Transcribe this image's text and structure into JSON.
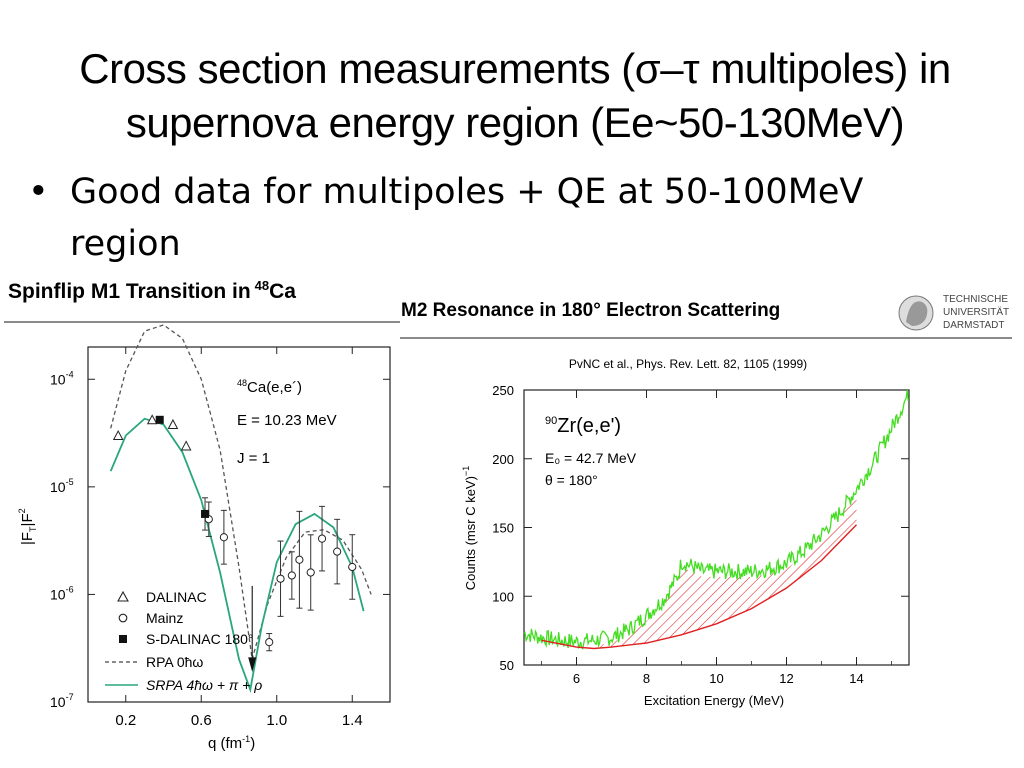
{
  "slide": {
    "title_line1": "Cross section measurements (σ–τ multipoles) in",
    "title_line2": "supernova energy region (Ee~50-130MeV)",
    "bullet_symbol": "•",
    "bullet_text_line1": "Good data for multipoles + QE at 50-100MeV",
    "bullet_text_line2": "region"
  },
  "chart_data": [
    {
      "type": "scatter",
      "title": "Spinflip M1 Transition in",
      "title_superscript": "48",
      "title_element": "Ca",
      "xlabel": "q (fm",
      "xlabel_superscript": "-1",
      "xlabel_close": ")",
      "ylabel": "|F",
      "ylabel_sub": "T",
      "ylabel_sup": "2",
      "annotation_reaction_sup": "48",
      "annotation_reaction": "Ca(e,e´)",
      "annotation_energy": "E = 10.23 MeV",
      "annotation_spin": "J = 1",
      "xlim": [
        0.0,
        1.6
      ],
      "ylim_log10": [
        -7.0,
        -3.7
      ],
      "x_ticks": [
        {
          "value": 0.2,
          "label": "0.2"
        },
        {
          "value": 0.6,
          "label": "0.6"
        },
        {
          "value": 1.0,
          "label": "1.0"
        },
        {
          "value": 1.4,
          "label": "1.4"
        }
      ],
      "y_ticks": [
        {
          "exp": -4,
          "label_base": "10",
          "label_exp": "-4"
        },
        {
          "exp": -5,
          "label_base": "10",
          "label_exp": "-5"
        },
        {
          "exp": -6,
          "label_base": "10",
          "label_exp": "-6"
        },
        {
          "exp": -7,
          "label_base": "10",
          "label_exp": "-7"
        }
      ],
      "series": [
        {
          "name": "DALINAC",
          "marker": "triangle",
          "x": [
            0.16,
            0.34,
            0.45,
            0.52
          ],
          "y": [
            3e-05,
            4.2e-05,
            3.8e-05,
            2.4e-05
          ],
          "err": [
            0,
            0,
            0,
            0
          ]
        },
        {
          "name": "Mainz",
          "marker": "circle",
          "x": [
            0.64,
            0.72,
            0.96,
            1.02,
            1.08,
            1.12,
            1.18,
            1.24,
            1.32,
            1.4
          ],
          "y": [
            5e-06,
            3.4e-06,
            3.6e-07,
            1.4e-06,
            1.5e-06,
            2.1e-06,
            1.6e-06,
            3.3e-06,
            2.5e-06,
            1.8e-06
          ],
          "err": [
            0.16,
            0.25,
            0.08,
            0.35,
            0.22,
            0.45,
            0.35,
            0.3,
            0.3,
            0.3
          ]
        },
        {
          "name": "S-DALINAC 180°",
          "marker": "square",
          "x": [
            0.38,
            0.62
          ],
          "y": [
            4.2e-05,
            5.6e-06
          ],
          "err": [
            0,
            0.15
          ]
        },
        {
          "name": "RPA 0ħω",
          "style": "dashed",
          "x": [
            0.12,
            0.2,
            0.3,
            0.4,
            0.5,
            0.6,
            0.7,
            0.8,
            0.87,
            0.95,
            1.05,
            1.15,
            1.25,
            1.35,
            1.45,
            1.5
          ],
          "y": [
            3.5e-05,
            0.00012,
            0.00028,
            0.00032,
            0.00024,
            0.0001,
            2.2e-05,
            1.8e-06,
            2.5e-07,
            8e-07,
            2.2e-06,
            3.8e-06,
            4e-06,
            3.2e-06,
            1.7e-06,
            1e-06
          ]
        },
        {
          "name": "SRPA 4ħω + π + ρ",
          "style": "solid",
          "x": [
            0.12,
            0.2,
            0.3,
            0.4,
            0.5,
            0.6,
            0.7,
            0.8,
            0.86,
            0.92,
            1.0,
            1.1,
            1.2,
            1.3,
            1.4,
            1.46
          ],
          "y": [
            1.4e-05,
            3e-05,
            4.3e-05,
            3.8e-05,
            2.1e-05,
            7.5e-06,
            1.6e-06,
            2.5e-07,
            1.3e-07,
            5e-07,
            2e-06,
            4.5e-06,
            5.6e-06,
            4.2e-06,
            1.8e-06,
            7e-07
          ]
        }
      ],
      "legend": [
        {
          "marker": "triangle",
          "label": "DALINAC"
        },
        {
          "marker": "circle",
          "label": "Mainz"
        },
        {
          "marker": "square",
          "label": "S-DALINAC 180°"
        },
        {
          "marker": "dashed",
          "label": "RPA 0ħω"
        },
        {
          "marker": "solid",
          "label": "SRPA 4ħω + π + ρ"
        }
      ]
    },
    {
      "type": "line",
      "title": "M2 Resonance in 180° Electron Scattering",
      "logo_line1": "TECHNISCHE",
      "logo_line2": "UNIVERSITÄT",
      "logo_line3": "DARMSTADT",
      "reference": "PvNC et al., Phys. Rev. Lett. 82, 1105 (1999)",
      "xlabel": "Excitation Energy (MeV)",
      "ylabel": "Counts (msr C keV)",
      "ylabel_sup": "−1",
      "annotation_reaction_sup": "90",
      "annotation_reaction": "Zr(e,e')",
      "annotation_e0": "E₀ = 42.7 MeV",
      "annotation_theta": "θ = 180°",
      "xlim": [
        4.5,
        15.5
      ],
      "ylim": [
        50,
        250
      ],
      "x_ticks": [
        6,
        8,
        10,
        12,
        14
      ],
      "y_ticks": [
        50,
        100,
        150,
        200,
        250
      ],
      "colors": {
        "data": "#44dd22",
        "fit": "#e02020",
        "hatch": "#e02020"
      },
      "series": [
        {
          "name": "measured spectrum",
          "x": [
            4.5,
            5.0,
            5.5,
            6.0,
            6.5,
            7.0,
            7.5,
            8.0,
            8.5,
            8.9,
            9.0,
            9.3,
            9.6,
            10.0,
            10.5,
            11.0,
            11.5,
            12.0,
            12.5,
            13.0,
            13.5,
            14.0,
            14.5,
            15.0,
            15.5
          ],
          "y": [
            73,
            70,
            68,
            67,
            68,
            70,
            76,
            86,
            98,
            115,
            125,
            122,
            118,
            118,
            118,
            118,
            120,
            124,
            133,
            145,
            160,
            178,
            198,
            222,
            248
          ]
        },
        {
          "name": "background fit",
          "x": [
            5.0,
            6.0,
            6.5,
            7.0,
            8.0,
            9.0,
            10.0,
            11.0,
            12.0,
            13.0,
            14.0
          ],
          "y": [
            68,
            63,
            62,
            63,
            66,
            72,
            80,
            91,
            106,
            126,
            152
          ]
        }
      ]
    }
  ]
}
